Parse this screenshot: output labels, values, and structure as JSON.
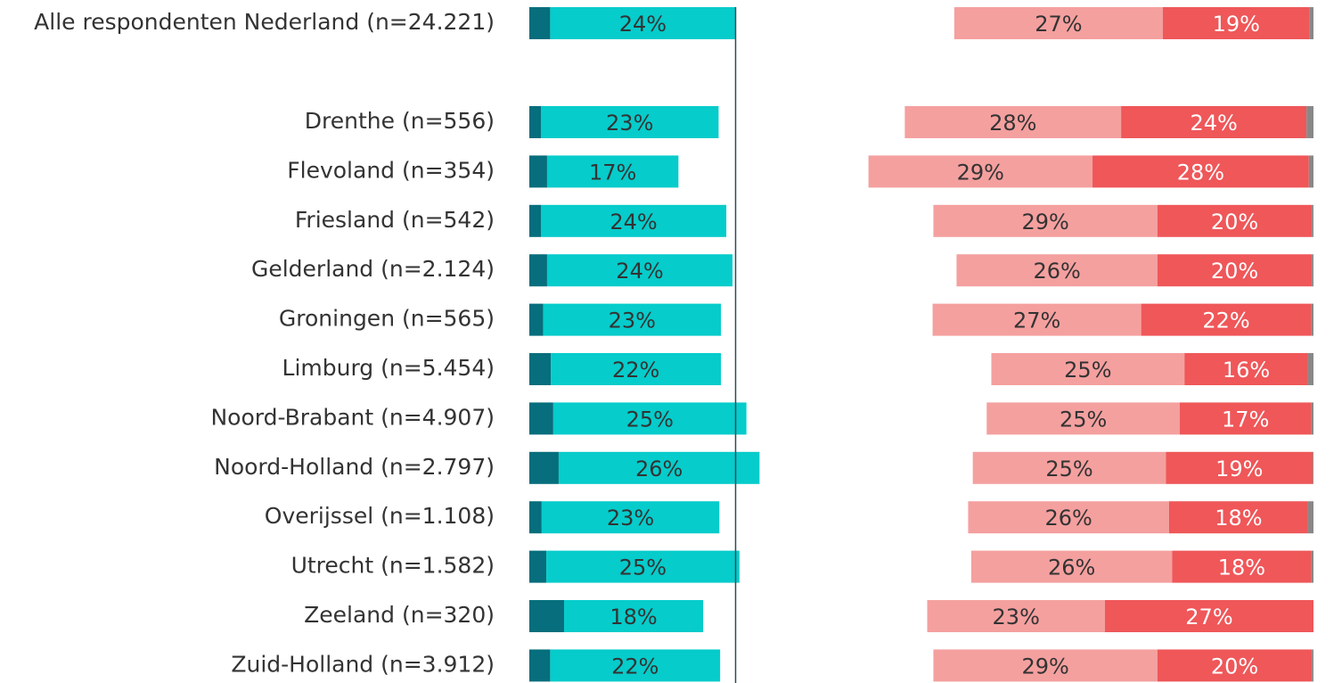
{
  "chart_data": {
    "type": "bar",
    "orientation": "horizontal",
    "stacked": true,
    "categories": [
      "Alle respondenten Nederland (n=24.221)",
      "Drenthe (n=556)",
      "Flevoland (n=354)",
      "Friesland (n=542)",
      "Gelderland (n=2.124)",
      "Groningen (n=565)",
      "Limburg (n=5.454)",
      "Noord-Brabant (n=4.907)",
      "Noord-Holland (n=2.797)",
      "Overijssel (n=1.108)",
      "Utrecht (n=1.582)",
      "Zeeland (n=320)",
      "Zuid-Holland (n=3.912)"
    ],
    "series": [
      {
        "side": "left",
        "color": "#066e7c",
        "values": [
          2.7,
          1.5,
          2.3,
          1.5,
          2.3,
          1.8,
          2.8,
          3.1,
          3.8,
          1.6,
          2.2,
          4.5,
          2.7
        ]
      },
      {
        "side": "left",
        "color": "#06cccb",
        "label_color": "#333333",
        "values": [
          24,
          23,
          17,
          24,
          24,
          23,
          22,
          25,
          26,
          23,
          25,
          18,
          22
        ],
        "value_labels": [
          "24%",
          "23%",
          "17%",
          "24%",
          "24%",
          "23%",
          "22%",
          "25%",
          "26%",
          "23%",
          "25%",
          "18%",
          "22%"
        ]
      },
      {
        "side": "right",
        "color": "#f4a09f",
        "label_color": "#333333",
        "values": [
          27,
          28,
          29,
          29,
          26,
          27,
          25,
          25,
          25,
          26,
          26,
          23,
          29
        ],
        "value_labels": [
          "27%",
          "28%",
          "29%",
          "29%",
          "26%",
          "27%",
          "25%",
          "25%",
          "25%",
          "26%",
          "26%",
          "23%",
          "29%"
        ]
      },
      {
        "side": "right",
        "color": "#ef5759",
        "label_color": "#ffffff",
        "values": [
          19,
          24,
          28,
          20,
          20,
          22,
          16,
          17,
          19,
          18,
          18,
          27,
          20
        ],
        "value_labels": [
          "19%",
          "24%",
          "28%",
          "20%",
          "20%",
          "22%",
          "16%",
          "17%",
          "19%",
          "18%",
          "18%",
          "27%",
          "20%"
        ]
      },
      {
        "side": "right",
        "color": "#888888",
        "values": [
          0.5,
          0.9,
          0.6,
          0.2,
          0.2,
          0.3,
          0.7,
          0.3,
          0.1,
          0.7,
          0.3,
          0,
          0.2
        ]
      }
    ]
  }
}
